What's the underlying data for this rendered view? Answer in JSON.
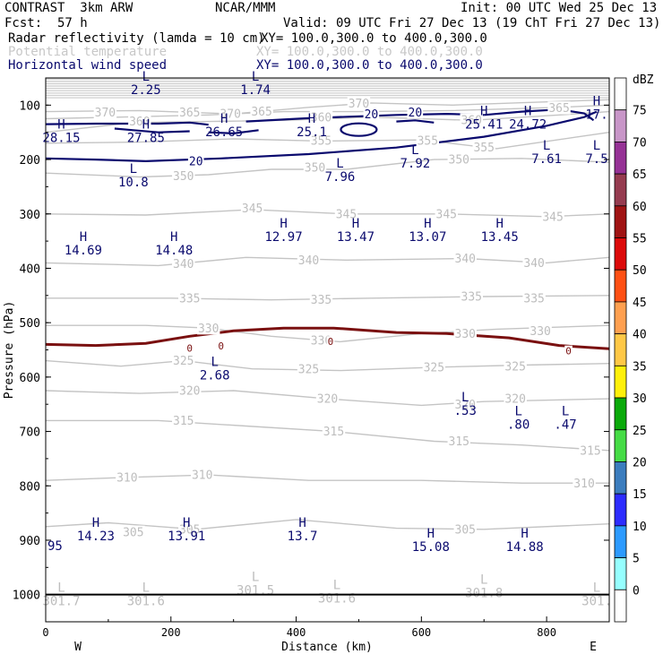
{
  "header": {
    "model": "CONTRAST  3km ARW",
    "center": "NCAR/MMM",
    "init": "Init: 00 UTC Wed 25 Dec 13",
    "fcst_label": "Fcst:",
    "fcst_value": "57 h",
    "valid": "Valid: 09 UTC Fri 27 Dec 13 (19 ChT Fri 27 Dec 13)",
    "fields": [
      {
        "name": "Radar reflectivity (lamda = 10 cm)",
        "xy": "XY= 100.0,300.0 to 400.0,300.0"
      },
      {
        "name": "Potential temperature",
        "xy": "XY= 100.0,300.0 to 400.0,300.0"
      },
      {
        "name": "Horizontal wind speed",
        "xy": "XY= 100.0,300.0 to 400.0,300.0"
      }
    ]
  },
  "chart_data": {
    "type": "cross-section",
    "xlabel": "Distance (km)",
    "ylabel": "Pressure (hPa)",
    "xlim": [
      0,
      900
    ],
    "ylim": [
      1050,
      50
    ],
    "x_ticks": [
      "0",
      "200",
      "400",
      "600",
      "800"
    ],
    "y_ticks": [
      "100",
      "200",
      "300",
      "400",
      "500",
      "600",
      "700",
      "800",
      "900",
      "1000"
    ],
    "west_label": "W",
    "east_label": "E",
    "colorbar": {
      "unit": "dBZ",
      "levels": [
        "75",
        "70",
        "65",
        "60",
        "55",
        "50",
        "45",
        "40",
        "35",
        "30",
        "25",
        "20",
        "15",
        "10",
        "5",
        "0"
      ],
      "colors": [
        "#ffffff",
        "#c896c8",
        "#963296",
        "#963c50",
        "#a01414",
        "#dc0a0a",
        "#ff5014",
        "#ffa050",
        "#ffc846",
        "#fff00a",
        "#0aaa0a",
        "#46dc46",
        "#3c7dbe",
        "#2d2dff",
        "#2d9bff",
        "#96ffff",
        "#ffffff"
      ]
    },
    "theta_labels": [
      {
        "x": 95,
        "p": 113,
        "t": "370"
      },
      {
        "x": 295,
        "p": 116,
        "t": "370"
      },
      {
        "x": 500,
        "p": 97,
        "t": "370"
      },
      {
        "x": 345,
        "p": 112,
        "t": "365"
      },
      {
        "x": 230,
        "p": 113,
        "t": "365"
      },
      {
        "x": 820,
        "p": 105,
        "t": "365"
      },
      {
        "x": 150,
        "p": 130,
        "t": "360"
      },
      {
        "x": 440,
        "p": 122,
        "t": "360"
      },
      {
        "x": 680,
        "p": 127,
        "t": "360"
      },
      {
        "x": 440,
        "p": 165,
        "t": "355"
      },
      {
        "x": 610,
        "p": 165,
        "t": "355"
      },
      {
        "x": 700,
        "p": 178,
        "t": "355"
      },
      {
        "x": 220,
        "p": 230,
        "t": "350"
      },
      {
        "x": 430,
        "p": 215,
        "t": "350"
      },
      {
        "x": 660,
        "p": 200,
        "t": "350"
      },
      {
        "x": 330,
        "p": 290,
        "t": "345"
      },
      {
        "x": 480,
        "p": 300,
        "t": "345"
      },
      {
        "x": 640,
        "p": 300,
        "t": "345"
      },
      {
        "x": 810,
        "p": 305,
        "t": "345"
      },
      {
        "x": 220,
        "p": 392,
        "t": "340"
      },
      {
        "x": 420,
        "p": 385,
        "t": "340"
      },
      {
        "x": 670,
        "p": 382,
        "t": "340"
      },
      {
        "x": 780,
        "p": 390,
        "t": "340"
      },
      {
        "x": 230,
        "p": 455,
        "t": "335"
      },
      {
        "x": 440,
        "p": 458,
        "t": "335"
      },
      {
        "x": 680,
        "p": 452,
        "t": "335"
      },
      {
        "x": 780,
        "p": 455,
        "t": "335"
      },
      {
        "x": 260,
        "p": 510,
        "t": "330"
      },
      {
        "x": 440,
        "p": 533,
        "t": "330"
      },
      {
        "x": 670,
        "p": 520,
        "t": "330"
      },
      {
        "x": 790,
        "p": 515,
        "t": "330"
      },
      {
        "x": 220,
        "p": 570,
        "t": "325"
      },
      {
        "x": 420,
        "p": 585,
        "t": "325"
      },
      {
        "x": 620,
        "p": 582,
        "t": "325"
      },
      {
        "x": 750,
        "p": 580,
        "t": "325"
      },
      {
        "x": 230,
        "p": 625,
        "t": "320"
      },
      {
        "x": 450,
        "p": 640,
        "t": "320"
      },
      {
        "x": 670,
        "p": 650,
        "t": "320"
      },
      {
        "x": 750,
        "p": 640,
        "t": "320"
      },
      {
        "x": 220,
        "p": 680,
        "t": "315"
      },
      {
        "x": 460,
        "p": 700,
        "t": "315"
      },
      {
        "x": 660,
        "p": 718,
        "t": "315"
      },
      {
        "x": 870,
        "p": 735,
        "t": "315"
      },
      {
        "x": 130,
        "p": 785,
        "t": "310"
      },
      {
        "x": 250,
        "p": 780,
        "t": "310"
      },
      {
        "x": 860,
        "p": 795,
        "t": "310"
      },
      {
        "x": 140,
        "p": 885,
        "t": "305"
      },
      {
        "x": 230,
        "p": 880,
        "t": "305"
      },
      {
        "x": 670,
        "p": 880,
        "t": "305"
      }
    ],
    "extrema": [
      {
        "x": 160,
        "p": 55,
        "type": "L",
        "value": "2.25",
        "color": "navy"
      },
      {
        "x": 335,
        "p": 55,
        "type": "L",
        "value": "1.74",
        "color": "navy"
      },
      {
        "x": 25,
        "p": 143,
        "type": "H",
        "value": "28.15",
        "color": "navy"
      },
      {
        "x": 160,
        "p": 143,
        "type": "H",
        "value": "27.85",
        "color": "navy"
      },
      {
        "x": 285,
        "p": 132,
        "type": "H",
        "value": "26.65",
        "color": "navy"
      },
      {
        "x": 425,
        "p": 132,
        "type": "H",
        "value": "25.1",
        "color": "navy"
      },
      {
        "x": 700,
        "p": 118,
        "type": "H",
        "value": "25.41",
        "color": "navy"
      },
      {
        "x": 770,
        "p": 118,
        "type": "H",
        "value": "24.72",
        "color": "navy"
      },
      {
        "x": 880,
        "p": 100,
        "type": "H",
        "value": "17.",
        "color": "navy"
      },
      {
        "x": 140,
        "p": 225,
        "type": "L",
        "value": "10.8",
        "color": "navy"
      },
      {
        "x": 470,
        "p": 215,
        "type": "L",
        "value": "7.96",
        "color": "navy"
      },
      {
        "x": 590,
        "p": 190,
        "type": "L",
        "value": "7.92",
        "color": "navy"
      },
      {
        "x": 800,
        "p": 182,
        "type": "L",
        "value": "7.61",
        "color": "navy"
      },
      {
        "x": 880,
        "p": 182,
        "type": "L",
        "value": "7.5",
        "color": "navy"
      },
      {
        "x": 380,
        "p": 325,
        "type": "H",
        "value": "12.97",
        "color": "navy"
      },
      {
        "x": 495,
        "p": 325,
        "type": "H",
        "value": "13.47",
        "color": "navy"
      },
      {
        "x": 610,
        "p": 325,
        "type": "H",
        "value": "13.07",
        "color": "navy"
      },
      {
        "x": 725,
        "p": 325,
        "type": "H",
        "value": "13.45",
        "color": "navy"
      },
      {
        "x": 60,
        "p": 350,
        "type": "H",
        "value": "14.69",
        "color": "navy"
      },
      {
        "x": 205,
        "p": 350,
        "type": "H",
        "value": "14.48",
        "color": "navy"
      },
      {
        "x": 270,
        "p": 580,
        "type": "L",
        "value": "2.68",
        "color": "navy"
      },
      {
        "x": 670,
        "p": 645,
        "type": "L",
        "value": ".53",
        "color": "navy"
      },
      {
        "x": 755,
        "p": 670,
        "type": "L",
        "value": ".80",
        "color": "navy"
      },
      {
        "x": 830,
        "p": 670,
        "type": "L",
        "value": ".47",
        "color": "navy"
      },
      {
        "x": 80,
        "p": 875,
        "type": "H",
        "value": "14.23",
        "color": "navy"
      },
      {
        "x": 225,
        "p": 875,
        "type": "H",
        "value": "13.91",
        "color": "navy"
      },
      {
        "x": 410,
        "p": 875,
        "type": "H",
        "value": "13.7",
        "color": "navy"
      },
      {
        "x": 615,
        "p": 895,
        "type": "H",
        "value": "15.08",
        "color": "navy"
      },
      {
        "x": 765,
        "p": 895,
        "type": "H",
        "value": "14.88",
        "color": "navy"
      },
      {
        "x": 335,
        "p": 975,
        "type": "L",
        "value": "301.5",
        "color": "gray"
      },
      {
        "x": 465,
        "p": 990,
        "type": "L",
        "value": "301.6",
        "color": "gray"
      },
      {
        "x": 700,
        "p": 980,
        "type": "L",
        "value": "301.8",
        "color": "gray"
      },
      {
        "x": 25,
        "p": 995,
        "type": "L",
        "value": "301.7",
        "color": "gray"
      },
      {
        "x": 160,
        "p": 995,
        "type": "L",
        "value": "301.6",
        "color": "gray"
      },
      {
        "x": 880,
        "p": 995,
        "type": "L",
        "value": "301.",
        "color": "gray"
      }
    ],
    "partial_labels": [
      {
        "x": 0,
        "p": 910,
        "t": "95",
        "color": "navy"
      }
    ],
    "wind_labels": [
      {
        "x": 520,
        "p": 117,
        "t": "20"
      },
      {
        "x": 590,
        "p": 113,
        "t": "20"
      },
      {
        "x": 240,
        "p": 203,
        "t": "20"
      }
    ],
    "zero_dbz_labels": [
      {
        "x": 230,
        "p": 547,
        "t": "0"
      },
      {
        "x": 280,
        "p": 543,
        "t": "0"
      },
      {
        "x": 455,
        "p": 535,
        "t": "0"
      },
      {
        "x": 835,
        "p": 552,
        "t": "0"
      }
    ]
  }
}
